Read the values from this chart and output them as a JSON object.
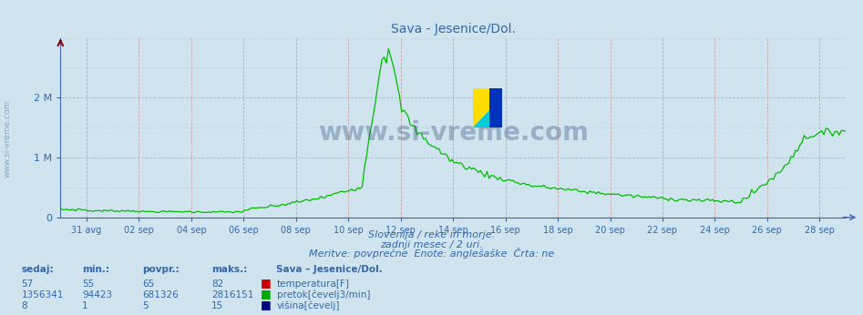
{
  "title": "Sava - Jesenice/Dol.",
  "bg_color": "#d0e4f0",
  "plot_bg_color": "#d0e4f0",
  "line_color": "#00bb00",
  "temp_color": "#cc0000",
  "flow_color": "#00aa00",
  "height_color": "#000080",
  "axis_color": "#4466aa",
  "text_color": "#3366aa",
  "grid_h_color": "#aabbcc",
  "grid_v_color": "#cc9999",
  "xticklabels": [
    "31 avg",
    "02 sep",
    "04 sep",
    "06 sep",
    "08 sep",
    "10 sep",
    "12 sep",
    "14 sep",
    "16 sep",
    "18 sep",
    "20 sep",
    "22 sep",
    "24 sep",
    "26 sep",
    "28 sep"
  ],
  "subtitle1": "Slovenija / reke in morje.",
  "subtitle2": "zadnji mesec / 2 uri.",
  "subtitle3": "Meritve: povprečne  Enote: anglešaške  Črta: ne",
  "table_header": "Sava – Jesenice/Dol.",
  "col_headers": [
    "sedaj:",
    "min.:",
    "povpr.:",
    "maks.:"
  ],
  "row1": [
    "57",
    "55",
    "65",
    "82"
  ],
  "row2": [
    "1356341",
    "94423",
    "681326",
    "2816151"
  ],
  "row3": [
    "8",
    "1",
    "5",
    "15"
  ],
  "legend1": "temperatura[F]",
  "legend2": "pretok[čevelj3/min]",
  "legend3": "višina[čevelj]",
  "watermark": "www.si-vreme.com",
  "watermark_color": "#1a3a6a",
  "side_text": "www.si-vreme.com",
  "ylim_max": 3000000,
  "yticks": [
    0,
    1000000,
    2000000
  ],
  "yticklabels": [
    "0",
    "1 M",
    "2 M"
  ]
}
